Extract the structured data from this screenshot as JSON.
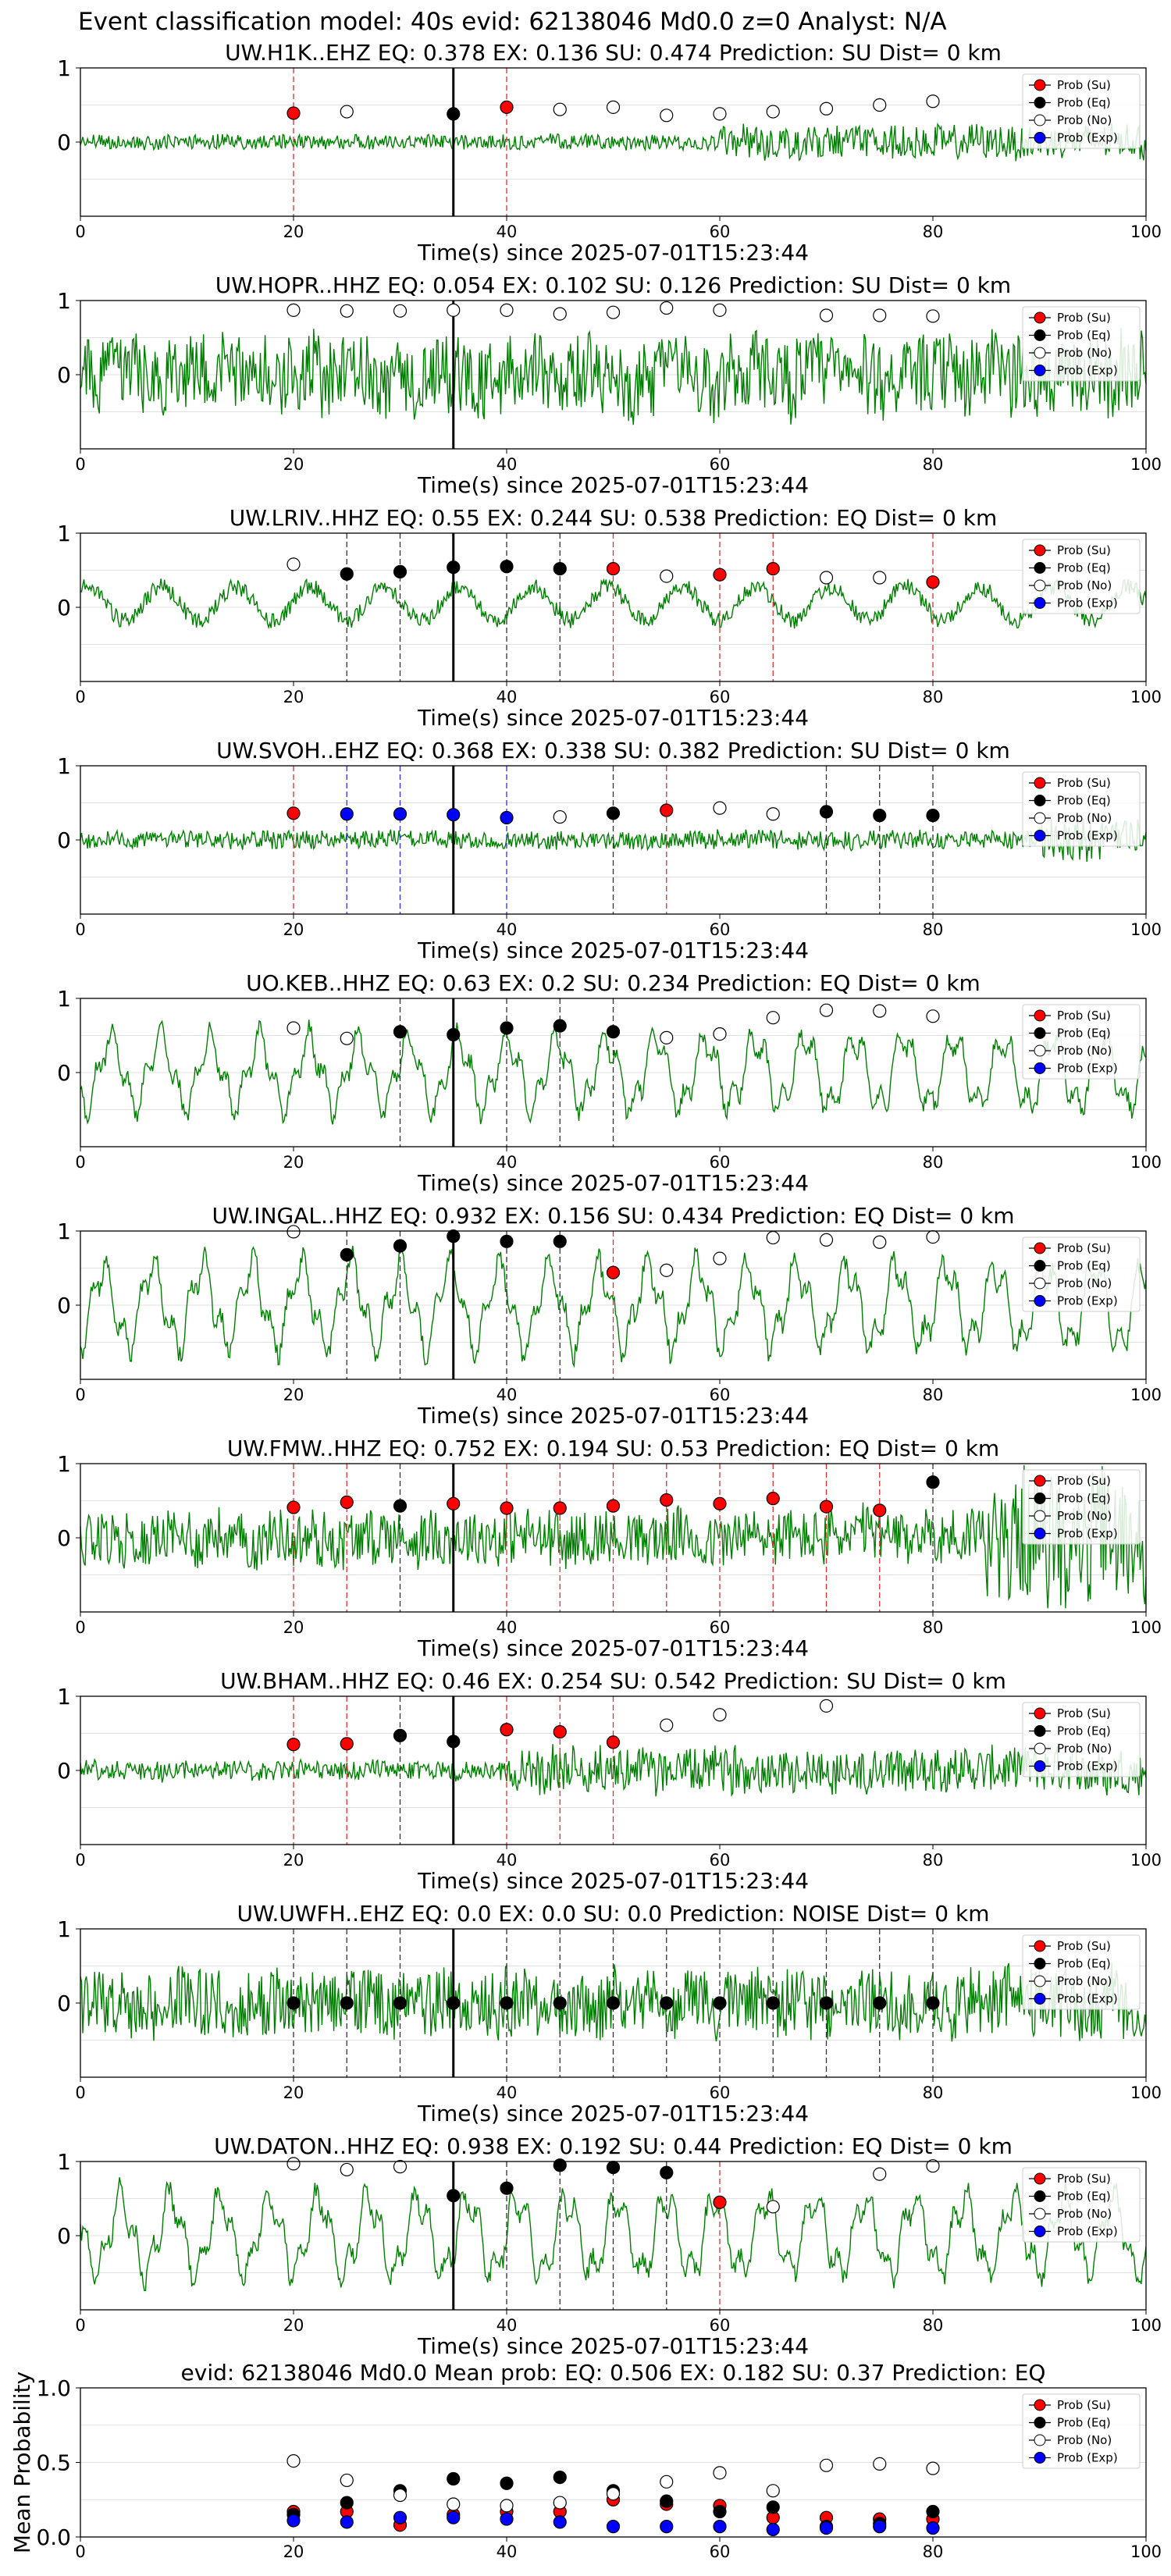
{
  "figure": {
    "suptitle": "Event classification model: 40s evid: 62138046 Md0.0 z=0 Analyst: N/A",
    "xlabel": "Time(s) since 2025-07-01T15:23:44",
    "legend_labels": [
      "Prob (Su)",
      "Prob (Eq)",
      "Prob (No)",
      "Prob (Exp)"
    ],
    "colors": {
      "su": "#ff0000",
      "eq": "#000000",
      "no": "#ffffff",
      "exp": "#0000ff",
      "trace": "#008000"
    }
  },
  "chart_data": [
    {
      "type": "line",
      "title": "UW.H1K..EHZ   EQ: 0.378  EX: 0.136  SU: 0.474   Prediction: SU    Dist= 0 km",
      "xlim": [
        0,
        100
      ],
      "ylim": [
        -1,
        1
      ],
      "xticks": [
        0,
        20,
        40,
        60,
        80,
        100
      ],
      "yticks": [
        1,
        0
      ],
      "trace_amp": 0.12,
      "spike_zone": [
        60,
        100
      ],
      "x": [
        20,
        25,
        30,
        35,
        40,
        45,
        50,
        55,
        60,
        65,
        70,
        75,
        80
      ],
      "pred": [
        "su",
        "no",
        "no",
        "eq",
        "su",
        "no",
        "no",
        "no",
        "no",
        "no",
        "no",
        "no",
        "no"
      ],
      "prob": [
        0.39,
        0.41,
        null,
        0.38,
        0.47,
        0.44,
        0.47,
        0.36,
        0.38,
        0.41,
        0.45,
        0.5,
        0.55
      ]
    },
    {
      "type": "line",
      "title": "UW.HOPR..HHZ   EQ: 0.054  EX: 0.102  SU: 0.126   Prediction: SU    Dist= 0 km",
      "xlim": [
        0,
        100
      ],
      "ylim": [
        -1,
        1
      ],
      "xticks": [
        0,
        20,
        40,
        60,
        80,
        100
      ],
      "yticks": [
        1,
        0
      ],
      "trace_amp": 0.65,
      "spike_zone": [
        0,
        100
      ],
      "x": [
        20,
        25,
        30,
        35,
        40,
        45,
        50,
        55,
        60,
        65,
        70,
        75,
        80
      ],
      "pred": [
        "no",
        "no",
        "no",
        "no",
        "no",
        "no",
        "no",
        "no",
        "no",
        "no",
        "no",
        "no",
        "no"
      ],
      "prob": [
        0.87,
        0.86,
        0.86,
        0.87,
        0.87,
        0.82,
        0.84,
        0.9,
        0.87,
        null,
        0.8,
        0.8,
        0.79
      ]
    },
    {
      "type": "line",
      "title": "UW.LRIV..HHZ   EQ: 0.55  EX: 0.244  SU: 0.538   Prediction: EQ    Dist= 0 km",
      "xlim": [
        0,
        100
      ],
      "ylim": [
        -1,
        1
      ],
      "xticks": [
        0,
        20,
        40,
        60,
        80,
        100
      ],
      "yticks": [
        1,
        0
      ],
      "trace_amp": 0.45,
      "spike_zone": [],
      "x": [
        20,
        25,
        30,
        35,
        40,
        45,
        50,
        55,
        60,
        65,
        70,
        75,
        80
      ],
      "pred": [
        "no",
        "eq",
        "eq",
        "eq",
        "eq",
        "eq",
        "su",
        "no",
        "su",
        "su",
        "no",
        "no",
        "su"
      ],
      "prob": [
        0.58,
        0.45,
        0.48,
        0.54,
        0.55,
        0.52,
        0.52,
        0.42,
        0.44,
        0.52,
        0.4,
        0.4,
        0.34
      ]
    },
    {
      "type": "line",
      "title": "UW.SVOH..EHZ   EQ: 0.368  EX: 0.338  SU: 0.382   Prediction: SU    Dist= 0 km",
      "xlim": [
        0,
        100
      ],
      "ylim": [
        -1,
        1
      ],
      "xticks": [
        0,
        20,
        40,
        60,
        80,
        100
      ],
      "yticks": [
        1,
        0
      ],
      "trace_amp": 0.15,
      "spike_zone": [
        90,
        100
      ],
      "x": [
        20,
        25,
        30,
        35,
        40,
        45,
        50,
        55,
        60,
        65,
        70,
        75,
        80
      ],
      "pred": [
        "su",
        "exp",
        "exp",
        "exp",
        "exp",
        "no",
        "eq",
        "su",
        "no",
        "no",
        "eq",
        "eq",
        "eq"
      ],
      "prob": [
        0.36,
        0.35,
        0.35,
        0.34,
        0.3,
        0.31,
        0.36,
        0.4,
        0.43,
        0.35,
        0.38,
        0.33,
        0.33
      ]
    },
    {
      "type": "line",
      "title": "UO.KEB..HHZ   EQ: 0.63  EX: 0.2  SU: 0.234   Prediction: EQ    Dist= 0 km",
      "xlim": [
        0,
        100
      ],
      "ylim": [
        -1,
        1
      ],
      "xticks": [
        0,
        20,
        40,
        60,
        80,
        100
      ],
      "yticks": [
        1,
        0
      ],
      "trace_amp": 0.62,
      "spike_zone": [],
      "x": [
        20,
        25,
        30,
        35,
        40,
        45,
        50,
        55,
        60,
        65,
        70,
        75,
        80
      ],
      "pred": [
        "no",
        "no",
        "eq",
        "eq",
        "eq",
        "eq",
        "eq",
        "no",
        "no",
        "no",
        "no",
        "no",
        "no"
      ],
      "prob": [
        0.6,
        0.46,
        0.55,
        0.51,
        0.6,
        0.63,
        0.55,
        0.47,
        0.52,
        0.74,
        0.84,
        0.83,
        0.76
      ]
    },
    {
      "type": "line",
      "title": "UW.INGAL..HHZ   EQ: 0.932  EX: 0.156  SU: 0.434   Prediction: EQ    Dist= 0 km",
      "xlim": [
        0,
        100
      ],
      "ylim": [
        -1,
        1
      ],
      "xticks": [
        0,
        20,
        40,
        60,
        80,
        100
      ],
      "yticks": [
        1,
        0
      ],
      "trace_amp": 0.72,
      "spike_zone": [],
      "x": [
        20,
        25,
        30,
        35,
        40,
        45,
        50,
        55,
        60,
        65,
        70,
        75,
        80
      ],
      "pred": [
        "no",
        "eq",
        "eq",
        "eq",
        "eq",
        "eq",
        "su",
        "no",
        "no",
        "no",
        "no",
        "no",
        "no"
      ],
      "prob": [
        0.99,
        0.68,
        0.8,
        0.93,
        0.86,
        0.86,
        0.44,
        0.47,
        0.63,
        0.91,
        0.88,
        0.85,
        0.92
      ]
    },
    {
      "type": "line",
      "title": "UW.FMW..HHZ   EQ: 0.752  EX: 0.194  SU: 0.53   Prediction: EQ    Dist= 0 km",
      "xlim": [
        0,
        100
      ],
      "ylim": [
        -1,
        1
      ],
      "xticks": [
        0,
        20,
        40,
        60,
        80,
        100
      ],
      "yticks": [
        1,
        0
      ],
      "trace_amp": 0.45,
      "spike_zone": [
        85,
        100
      ],
      "x": [
        20,
        25,
        30,
        35,
        40,
        45,
        50,
        55,
        60,
        65,
        70,
        75,
        80
      ],
      "pred": [
        "su",
        "su",
        "eq",
        "su",
        "su",
        "su",
        "su",
        "su",
        "su",
        "su",
        "su",
        "su",
        "eq"
      ],
      "prob": [
        0.41,
        0.48,
        0.43,
        0.46,
        0.4,
        0.4,
        0.43,
        0.51,
        0.46,
        0.53,
        0.42,
        0.37,
        0.75
      ]
    },
    {
      "type": "line",
      "title": "UW.BHAM..HHZ   EQ: 0.46  EX: 0.254  SU: 0.542   Prediction: SU    Dist= 0 km",
      "xlim": [
        0,
        100
      ],
      "ylim": [
        -1,
        1
      ],
      "xticks": [
        0,
        20,
        40,
        60,
        80,
        100
      ],
      "yticks": [
        1,
        0
      ],
      "trace_amp": 0.16,
      "spike_zone": [
        40,
        100
      ],
      "x": [
        20,
        25,
        30,
        35,
        40,
        45,
        50,
        55,
        60,
        65,
        70,
        75,
        80
      ],
      "pred": [
        "su",
        "su",
        "eq",
        "eq",
        "su",
        "su",
        "su",
        "no",
        "no",
        "no",
        "no",
        "no",
        "no"
      ],
      "prob": [
        0.35,
        0.36,
        0.47,
        0.39,
        0.55,
        0.52,
        0.38,
        0.61,
        0.75,
        null,
        0.87,
        null,
        null
      ]
    },
    {
      "type": "line",
      "title": "UW.UWFH..EHZ   EQ: 0.0  EX: 0.0  SU: 0.0   Prediction: NOISE    Dist= 0 km",
      "xlim": [
        0,
        100
      ],
      "ylim": [
        -1,
        1
      ],
      "xticks": [
        0,
        20,
        40,
        60,
        80,
        100
      ],
      "yticks": [
        1,
        0
      ],
      "trace_amp": 0.55,
      "spike_zone": [
        0,
        100
      ],
      "x": [
        20,
        25,
        30,
        35,
        40,
        45,
        50,
        55,
        60,
        65,
        70,
        75,
        80
      ],
      "pred": [
        "eq",
        "eq",
        "eq",
        "eq",
        "eq",
        "eq",
        "eq",
        "eq",
        "eq",
        "eq",
        "eq",
        "eq",
        "eq"
      ],
      "prob": [
        0.0,
        0.0,
        0.0,
        0.0,
        0.0,
        0.0,
        0.0,
        0.0,
        0.0,
        0.0,
        0.0,
        0.0,
        0.0
      ]
    },
    {
      "type": "line",
      "title": "UW.DATON..HHZ   EQ: 0.938  EX: 0.192  SU: 0.44   Prediction: EQ    Dist= 0 km",
      "xlim": [
        0,
        100
      ],
      "ylim": [
        -1,
        1
      ],
      "xticks": [
        0,
        20,
        40,
        60,
        80,
        100
      ],
      "yticks": [
        1,
        0
      ],
      "trace_amp": 0.68,
      "spike_zone": [],
      "x": [
        20,
        25,
        30,
        35,
        40,
        45,
        50,
        55,
        60,
        65,
        70,
        75,
        80
      ],
      "pred": [
        "no",
        "no",
        "no",
        "eq",
        "eq",
        "eq",
        "eq",
        "eq",
        "su",
        "no",
        "no",
        "no",
        "no"
      ],
      "prob": [
        0.97,
        0.89,
        0.93,
        0.54,
        0.64,
        0.95,
        0.92,
        0.85,
        0.45,
        0.39,
        null,
        0.83,
        0.94
      ]
    },
    {
      "type": "scatter",
      "title": "evid: 62138046  Md0.0   Mean prob:   EQ: 0.506  EX: 0.182  SU: 0.37   Prediction: EQ",
      "ylabel": "Mean Probability",
      "xlim": [
        0,
        100
      ],
      "ylim": [
        0,
        1
      ],
      "xticks": [
        0,
        20,
        40,
        60,
        80,
        100
      ],
      "yticks": [
        0.0,
        0.5,
        1.0
      ],
      "x": [
        20,
        25,
        30,
        35,
        40,
        45,
        50,
        55,
        60,
        65,
        70,
        75,
        80
      ],
      "series": [
        {
          "name": "Prob (Su)",
          "key": "su",
          "values": [
            0.17,
            0.17,
            0.08,
            0.15,
            0.17,
            0.17,
            0.25,
            0.22,
            0.21,
            0.13,
            0.13,
            0.12,
            0.12
          ]
        },
        {
          "name": "Prob (Eq)",
          "key": "eq",
          "values": [
            0.15,
            0.23,
            0.31,
            0.39,
            0.36,
            0.4,
            0.31,
            0.24,
            0.17,
            0.2,
            0.07,
            0.09,
            0.17
          ]
        },
        {
          "name": "Prob (No)",
          "key": "no",
          "values": [
            0.51,
            0.38,
            0.28,
            0.22,
            0.21,
            0.23,
            0.29,
            0.37,
            0.43,
            0.31,
            0.48,
            0.49,
            0.46
          ]
        },
        {
          "name": "Prob (Exp)",
          "key": "exp",
          "values": [
            0.11,
            0.1,
            0.13,
            0.13,
            0.12,
            0.1,
            0.07,
            0.07,
            0.07,
            0.05,
            0.06,
            0.07,
            0.06
          ]
        }
      ]
    }
  ]
}
